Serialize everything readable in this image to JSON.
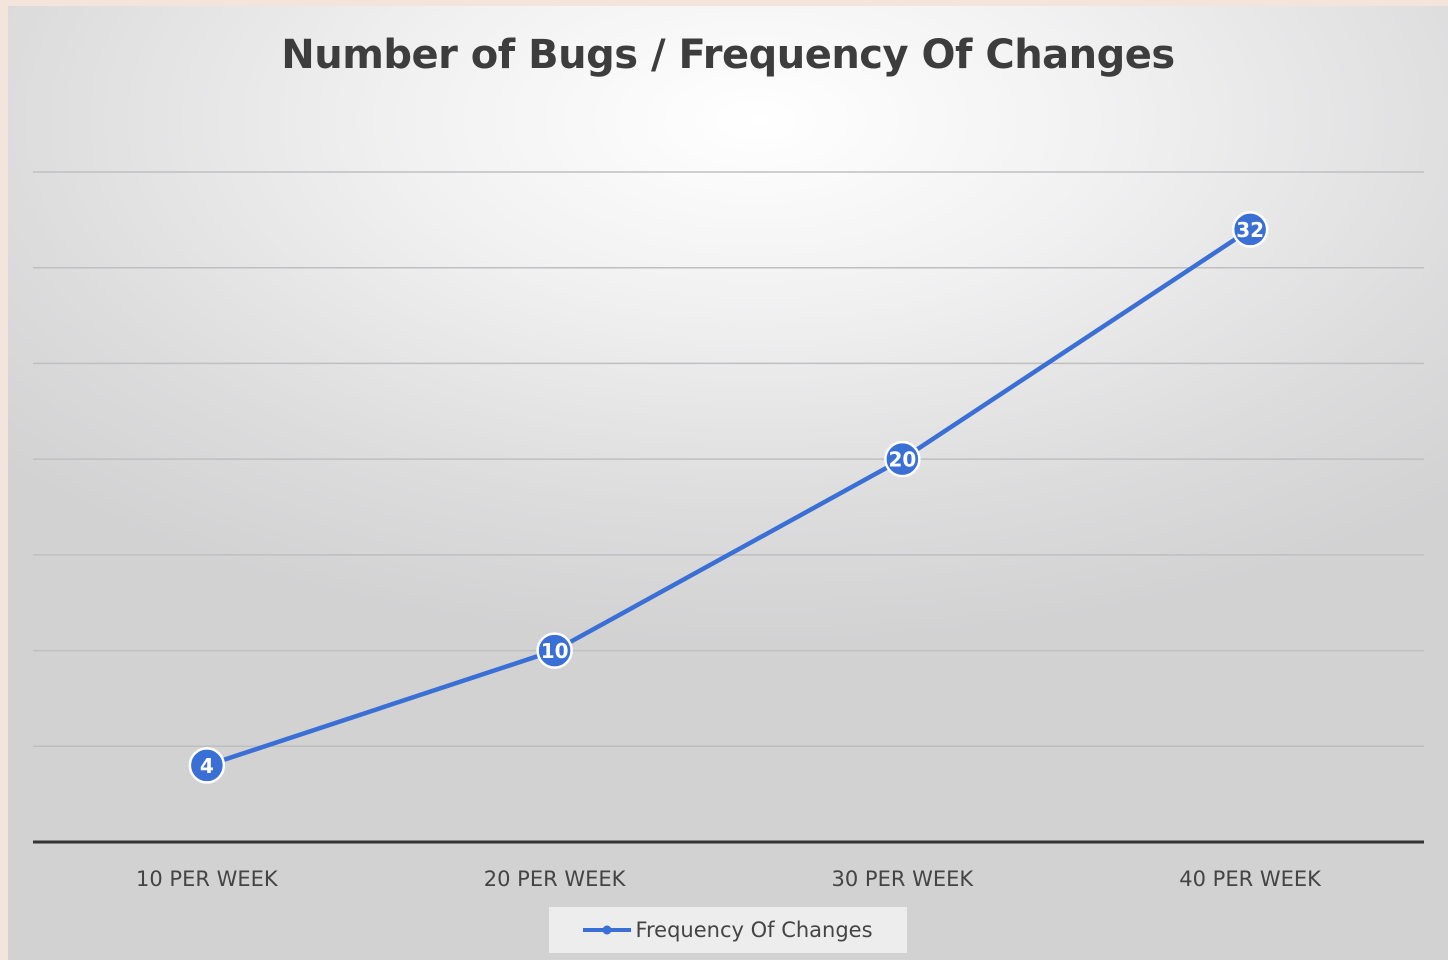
{
  "chart_data": {
    "type": "line",
    "title": "Number of Bugs / Frequency Of Changes",
    "categories": [
      "10 PER WEEK",
      "20 PER WEEK",
      "30 PER WEEK",
      "40 PER WEEK"
    ],
    "series": [
      {
        "name": "Frequency Of Changes",
        "values": [
          4,
          10,
          20,
          32
        ],
        "color": "#3a6fd6"
      }
    ],
    "ylim": [
      0,
      35
    ],
    "grid": true,
    "legend": "bottom",
    "data_labels": true
  }
}
